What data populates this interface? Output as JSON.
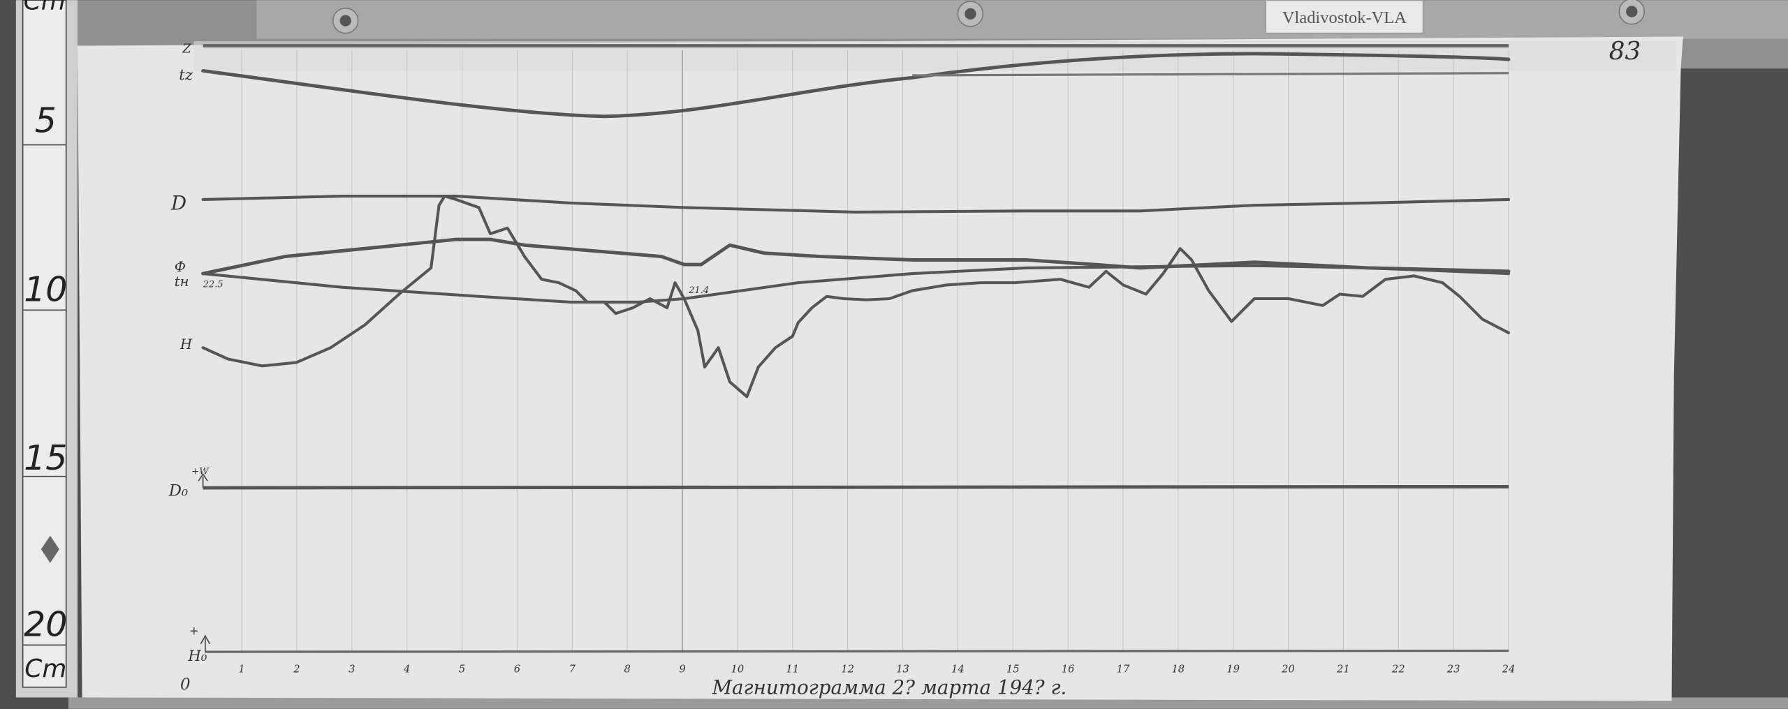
{
  "station_badge": "Vladivostok-VLA",
  "sheet_number": "83",
  "ruler": {
    "unit_top": "Cm",
    "unit_bottom": "Cm",
    "marks": [
      "5",
      "10",
      "15",
      "20"
    ]
  },
  "trace_labels": {
    "z": "Z",
    "tz": "tz",
    "d": "D",
    "h_phi": "Ф",
    "th": "tн",
    "h": "H",
    "d0": "D₀",
    "d0_dir": "+W",
    "h0": "H₀",
    "h0_dir": "+",
    "origin": "0"
  },
  "annotations": {
    "th_start": "22.5",
    "th_mid": "21.4"
  },
  "hours": [
    "1",
    "2",
    "3",
    "4",
    "5",
    "6",
    "7",
    "8",
    "9",
    "10",
    "11",
    "12",
    "13",
    "14",
    "15",
    "16",
    "17",
    "18",
    "19",
    "20",
    "21",
    "22",
    "23",
    "24"
  ],
  "caption": "Магнитограмма 2? марта 194? г.",
  "colors": {
    "paper": "#e4e4e4",
    "trace": "#555555",
    "wood": "#4e4e4e",
    "frame": "#9a9a9a"
  }
}
